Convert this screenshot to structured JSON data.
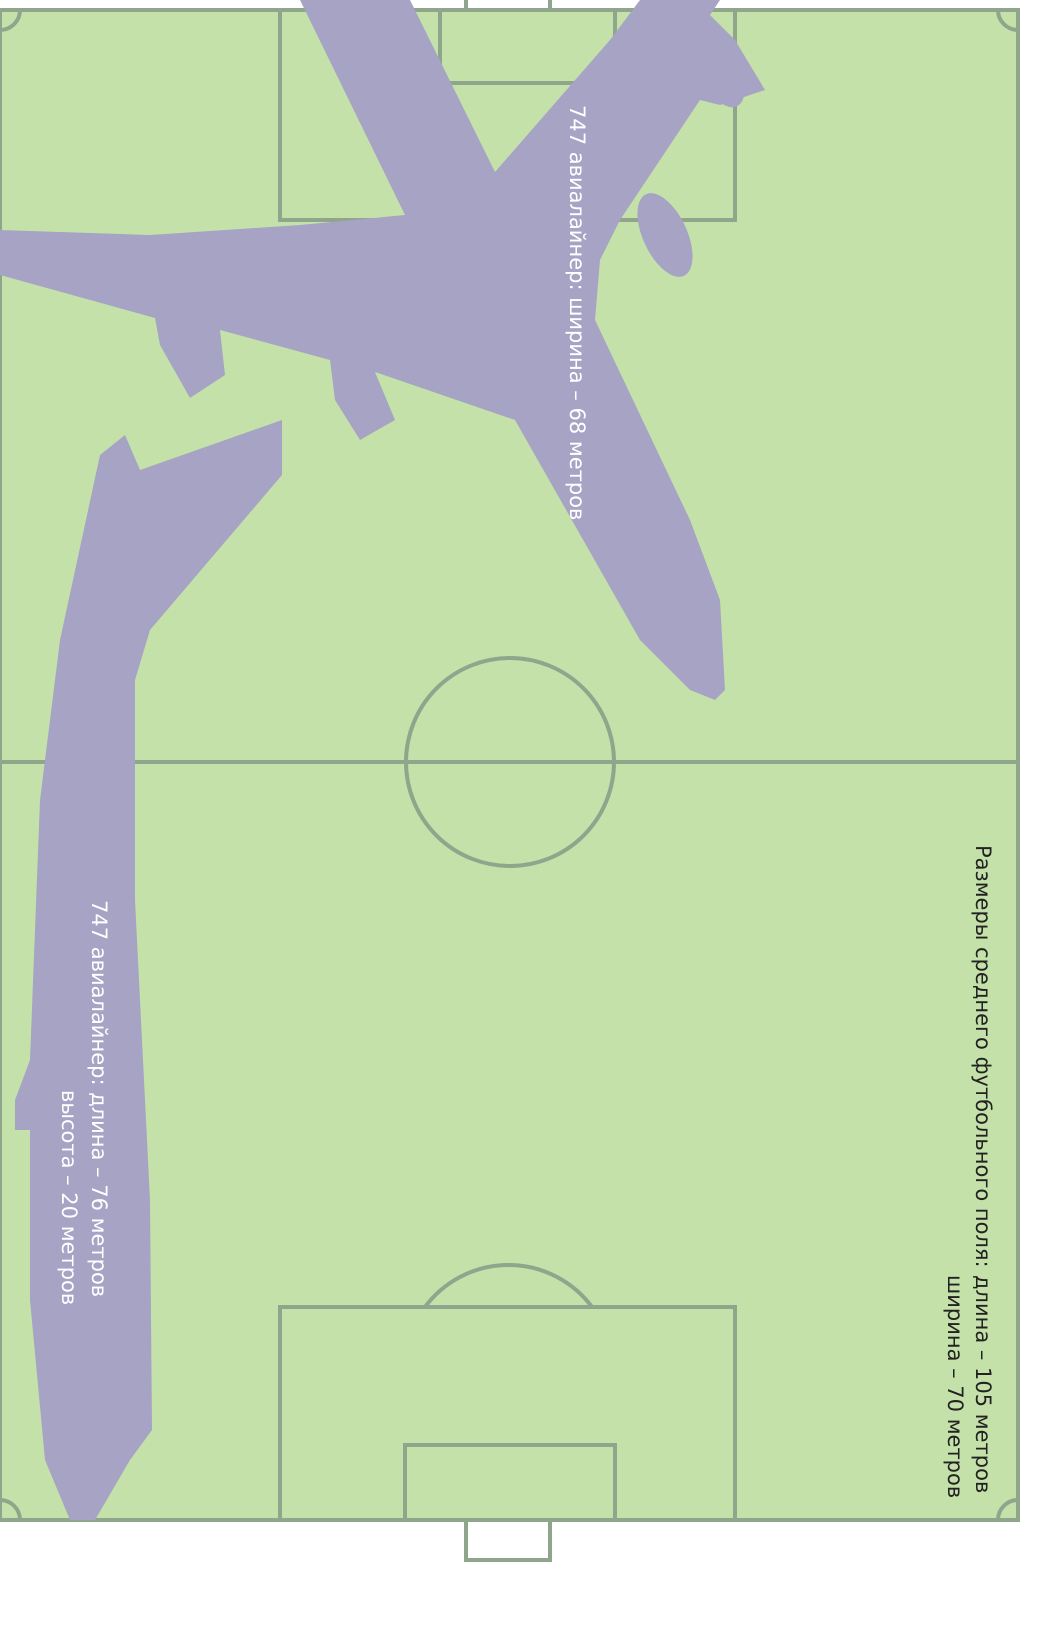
{
  "labels": {
    "wingspan": "747 авиалайнер: ширина – 68 метров",
    "length": "747 авиалайнер:  длина – 76 метров",
    "height": "высота – 20 метров",
    "field_title": "Размеры среднего футбольного поля:",
    "field_length": "длина – 105 метров",
    "field_width": "ширина – 70 метров"
  }
}
